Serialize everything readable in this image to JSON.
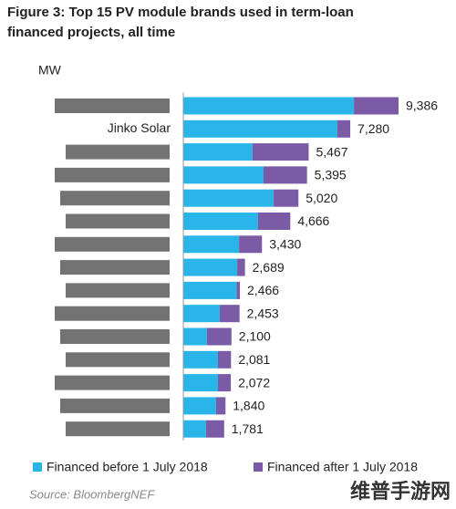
{
  "chart_data": {
    "type": "stacked-bar-horizontal",
    "title_lines": [
      "Figure 3:  Top 15 PV module brands used in term-loan",
      "financed projects, all time"
    ],
    "unit": "MW",
    "categories": [
      null,
      "Jinko Solar",
      null,
      null,
      null,
      null,
      null,
      null,
      null,
      null,
      null,
      null,
      null,
      null,
      null
    ],
    "series": [
      {
        "name": "Financed before 1 July 2018",
        "color": "#29b5e8",
        "values": [
          7440,
          6720,
          3020,
          3500,
          3940,
          3260,
          2430,
          2350,
          2330,
          1590,
          1030,
          1510,
          1510,
          1430,
          990
        ]
      },
      {
        "name": "Financed after 1 July 2018",
        "color": "#7b5aa6",
        "values": [
          1946,
          560,
          2447,
          1895,
          1080,
          1406,
          1000,
          339,
          136,
          863,
          1070,
          571,
          562,
          410,
          791
        ]
      }
    ],
    "totals": [
      9386,
      7280,
      5467,
      5395,
      5020,
      4666,
      3430,
      2689,
      2466,
      2453,
      2100,
      2081,
      2072,
      1840,
      1781
    ],
    "totals_labels": [
      "9,386",
      "7,280",
      "5,467",
      "5,395",
      "5,020",
      "4,666",
      "3,430",
      "2,689",
      "2,466",
      "2,453",
      "2,100",
      "2,081",
      "2,072",
      "1,840",
      "1,781"
    ],
    "legend": "bottom",
    "source": "Source: BloombergNEF",
    "watermark": "维普手游网"
  }
}
